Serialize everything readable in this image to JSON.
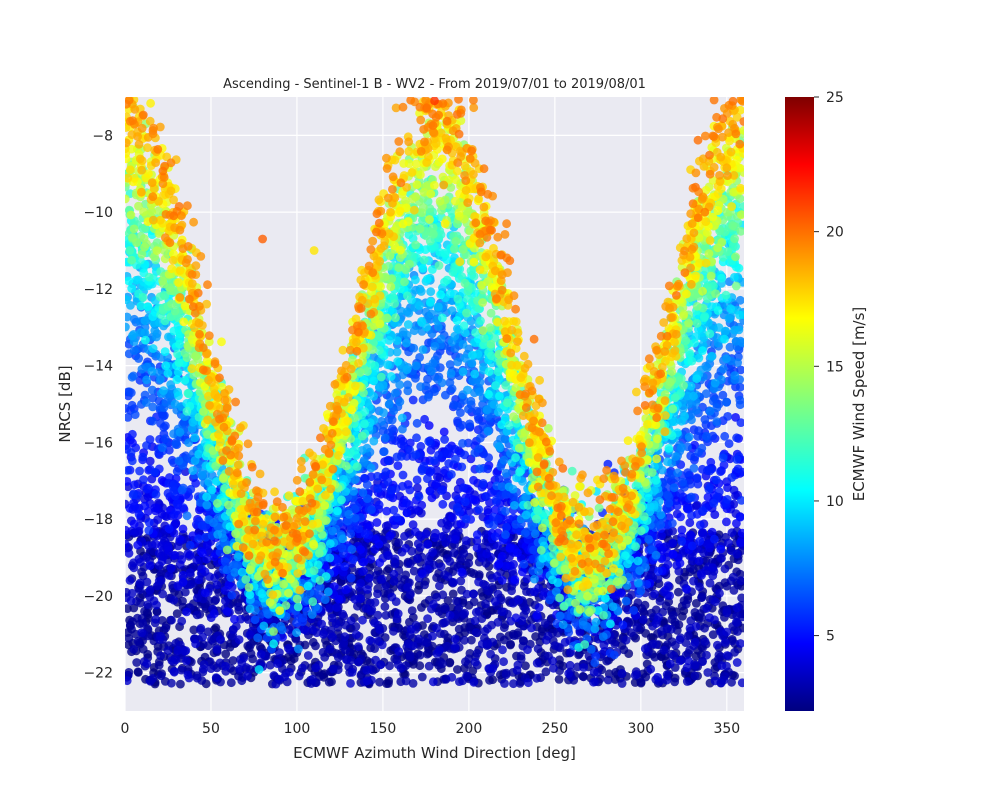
{
  "chart_data": {
    "type": "scatter",
    "title": "Ascending - Sentinel-1 B - WV2 - From 2019/07/01 to 2019/08/01",
    "xlabel": "ECMWF Azimuth Wind Direction [deg]",
    "ylabel": "NRCS [dB]",
    "xlim": [
      0,
      360
    ],
    "ylim": [
      -23,
      -7
    ],
    "x_ticks": [
      0,
      50,
      100,
      150,
      200,
      250,
      300,
      350
    ],
    "y_ticks": [
      -22,
      -20,
      -18,
      -16,
      -14,
      -12,
      -10,
      -8
    ],
    "grid": true,
    "background": "#eaeaf2",
    "colormap": "jet",
    "colorbar": {
      "label": "ECMWF Wind Speed [m/s]",
      "range": [
        2.2,
        25
      ],
      "ticks": [
        5,
        10,
        15,
        20,
        25
      ]
    },
    "point_count_approx": 10000,
    "model": {
      "description_of_distribution": "NRCS rises with wind speed; upwind/downwind maxima near 0/360 and 180 deg, crosswind minima near 90 and 270 deg",
      "speed_range": [
        2.2,
        22
      ],
      "extreme_examples": [
        {
          "x": 180,
          "y": -7.1,
          "speed": 21
        },
        {
          "x": 172,
          "y": -7.6,
          "speed": 19
        },
        {
          "x": 12,
          "y": -7.7,
          "speed": 14
        },
        {
          "x": 355,
          "y": -7.9,
          "speed": 18
        },
        {
          "x": 110,
          "y": -11.0,
          "speed": 17
        },
        {
          "x": 80,
          "y": -10.7,
          "speed": 20
        },
        {
          "x": 90,
          "y": -22.2,
          "speed": 2.5
        },
        {
          "x": 212,
          "y": -22.2,
          "speed": 2.5
        }
      ]
    }
  }
}
